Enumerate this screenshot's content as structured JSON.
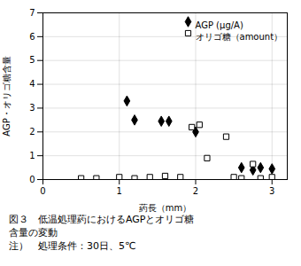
{
  "chart_data": {
    "type": "scatter",
    "xlabel": "葯長（mm）",
    "ylabel": "AGP・オリゴ糖含量",
    "annotations": [
      "図３　低温処理葯におけるAGPとオリゴ糖",
      "含量の変動",
      "注）　処理条件：30日、5℃"
    ],
    "series": [
      {
        "name": "AGP (μg/A)",
        "color": "black",
        "marker": "diamond",
        "x": [
          1.1,
          1.2,
          1.55,
          1.65,
          2.0,
          2.6,
          2.75,
          2.85,
          3.0
        ],
        "values": [
          3.3,
          2.5,
          2.45,
          2.45,
          2.0,
          0.5,
          0.4,
          0.5,
          0.45
        ]
      },
      {
        "name": "オリゴ糖（amount）",
        "color": "black",
        "marker": "square_open",
        "x": [
          0.5,
          0.7,
          1.0,
          1.2,
          1.4,
          1.6,
          1.8,
          1.95,
          2.05,
          2.15,
          2.4,
          2.5,
          2.6,
          2.75,
          2.85,
          3.0
        ],
        "values": [
          0.05,
          0.05,
          0.1,
          0.05,
          0.1,
          0.15,
          0.1,
          2.2,
          2.3,
          0.9,
          1.8,
          0.1,
          0.05,
          0.65,
          0.05,
          0.1
        ]
      }
    ],
    "xlim": [
      0,
      3.2
    ],
    "xticks": [
      0,
      1,
      2,
      3
    ],
    "ylim": [
      0.0,
      7.0
    ],
    "yticks": [
      0.0,
      1.0,
      2.0,
      3.0,
      4.0,
      5.0,
      6.0,
      7.0
    ],
    "grid": true,
    "legend": "upper right"
  }
}
